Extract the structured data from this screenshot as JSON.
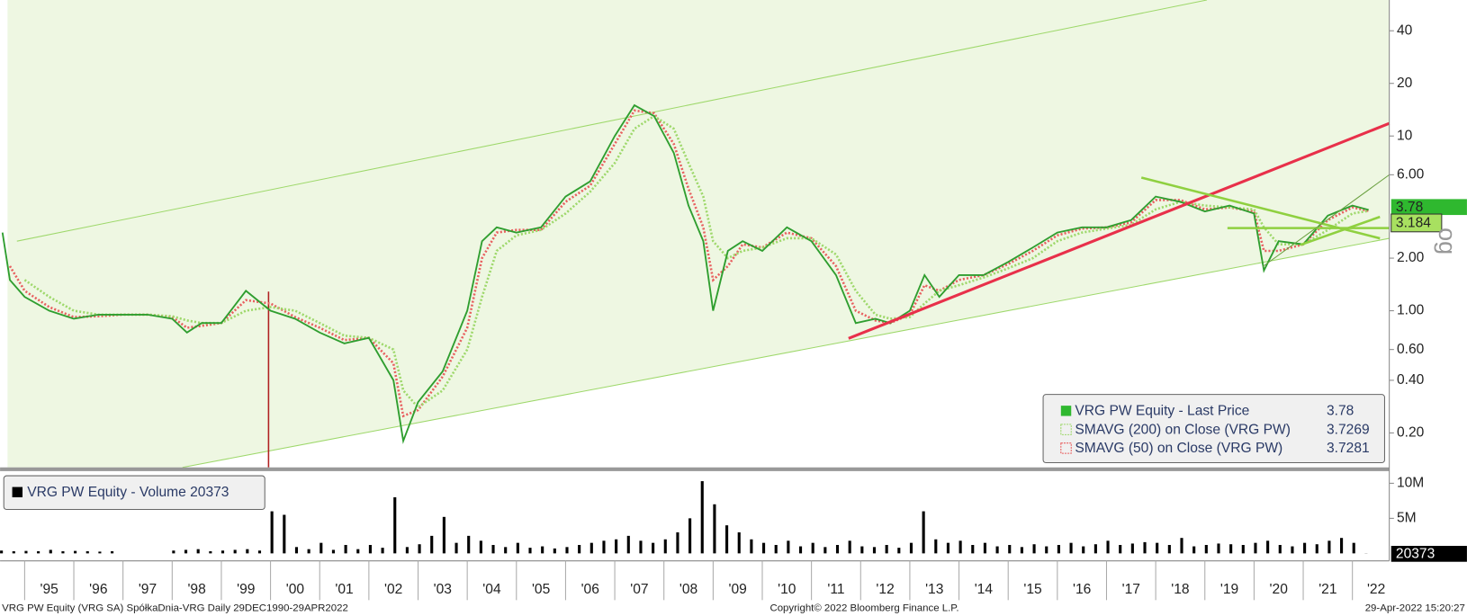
{
  "chart_data": [
    {
      "type": "line",
      "log_scale": true,
      "x": [
        1994.55,
        1994.7,
        1995,
        1995.5,
        1996,
        1996.5,
        1997,
        1997.5,
        1998,
        1998.3,
        1998.6,
        1999,
        1999.5,
        2000,
        2000.5,
        2001,
        2001.5,
        2002,
        2002.5,
        2002.7,
        2003,
        2003.5,
        2004,
        2004.3,
        2004.6,
        2005,
        2005.5,
        2006,
        2006.5,
        2007,
        2007.4,
        2007.8,
        2008.2,
        2008.5,
        2008.8,
        2009,
        2009.3,
        2009.6,
        2010,
        2010.5,
        2011,
        2011.5,
        2011.9,
        2012.3,
        2012.6,
        2013,
        2013.3,
        2013.6,
        2014,
        2014.5,
        2015,
        2015.5,
        2016,
        2016.5,
        2017,
        2017.5,
        2018,
        2018.5,
        2019,
        2019.5,
        2020,
        2020.2,
        2020.5,
        2021,
        2021.5,
        2022,
        2022.33
      ],
      "series": [
        {
          "name": "VRG PW Equity - Last Price",
          "color": "#2f9e2f",
          "dash": false,
          "values": [
            2.8,
            1.5,
            1.2,
            1.0,
            0.9,
            0.95,
            0.95,
            0.95,
            0.9,
            0.75,
            0.85,
            0.85,
            1.3,
            1.0,
            0.9,
            0.75,
            0.65,
            0.7,
            0.4,
            0.18,
            0.3,
            0.45,
            1.0,
            2.5,
            3.0,
            2.8,
            3.0,
            4.5,
            5.5,
            10,
            15,
            13,
            8,
            4,
            2.5,
            1.0,
            2.2,
            2.5,
            2.2,
            3.0,
            2.5,
            1.6,
            0.85,
            0.9,
            0.85,
            1.0,
            1.6,
            1.2,
            1.6,
            1.6,
            1.9,
            2.3,
            2.8,
            3.0,
            3.0,
            3.3,
            4.5,
            4.2,
            3.7,
            4.0,
            3.6,
            1.7,
            2.5,
            2.4,
            3.5,
            4.0,
            3.78
          ]
        },
        {
          "name": "SMAVG (200)  on Close (VRG PW)",
          "color": "#9ed86b",
          "dash": true,
          "values": [
            null,
            null,
            1.5,
            1.2,
            1.0,
            0.95,
            0.95,
            0.95,
            0.93,
            0.88,
            0.85,
            0.85,
            1.0,
            1.05,
            1.0,
            0.85,
            0.72,
            0.7,
            0.6,
            0.35,
            0.28,
            0.35,
            0.6,
            1.2,
            2.2,
            2.7,
            2.9,
            3.6,
            4.8,
            7,
            11,
            13,
            11,
            7,
            4.5,
            2.5,
            2.0,
            2.2,
            2.3,
            2.6,
            2.6,
            2.1,
            1.3,
            0.95,
            0.9,
            0.92,
            1.1,
            1.3,
            1.4,
            1.55,
            1.75,
            2.0,
            2.5,
            2.8,
            2.95,
            3.1,
            3.8,
            4.2,
            4.0,
            3.9,
            3.8,
            3.0,
            2.4,
            2.4,
            2.9,
            3.6,
            3.7269
          ]
        },
        {
          "name": "SMAVG (50)  on Close (VRG PW)",
          "color": "#e86060",
          "dash": true,
          "values": [
            null,
            1.8,
            1.3,
            1.05,
            0.92,
            0.93,
            0.95,
            0.95,
            0.92,
            0.8,
            0.82,
            0.85,
            1.15,
            1.1,
            0.92,
            0.8,
            0.68,
            0.7,
            0.5,
            0.25,
            0.27,
            0.42,
            0.8,
            2.0,
            2.8,
            2.9,
            2.9,
            4.2,
            5.2,
            9,
            14,
            13.5,
            9,
            5,
            3,
            1.5,
            1.8,
            2.4,
            2.3,
            2.8,
            2.6,
            1.8,
            1.0,
            0.88,
            0.85,
            0.95,
            1.4,
            1.3,
            1.5,
            1.6,
            1.85,
            2.2,
            2.7,
            2.95,
            3.0,
            3.2,
            4.3,
            4.3,
            3.8,
            3.9,
            3.7,
            2.2,
            2.2,
            2.4,
            3.3,
            3.9,
            3.7281
          ]
        }
      ],
      "xlim": [
        1994.5,
        2022.75
      ],
      "ylim": [
        0.127,
        60
      ],
      "yticks": [
        {
          "value": 0.2,
          "label": "0.20"
        },
        {
          "value": 0.4,
          "label": "0.40"
        },
        {
          "value": 0.6,
          "label": "0.60"
        },
        {
          "value": 1,
          "label": "1.00"
        },
        {
          "value": 2,
          "label": "2.00"
        },
        {
          "value": 6,
          "label": "6.00"
        },
        10,
        20,
        40
      ],
      "annotations": [
        "3.184",
        "og"
      ],
      "legend": "lower right"
    },
    {
      "type": "bar",
      "name": "VRG PW Equity - Volume",
      "color": "#000000",
      "x": [
        1994.5,
        1994.75,
        1995,
        1995.25,
        1995.5,
        1995.75,
        1996,
        1996.25,
        1996.5,
        1996.75,
        1997,
        1997.25,
        1997.5,
        1997.75,
        1998,
        1998.25,
        1998.5,
        1998.75,
        1999,
        1999.25,
        1999.5,
        1999.75,
        2000,
        2000.25,
        2000.5,
        2000.75,
        2001,
        2001.25,
        2001.5,
        2001.75,
        2002,
        2002.25,
        2002.5,
        2002.75,
        2003,
        2003.25,
        2003.5,
        2003.75,
        2004,
        2004.25,
        2004.5,
        2004.75,
        2005,
        2005.25,
        2005.5,
        2005.75,
        2006,
        2006.25,
        2006.5,
        2006.75,
        2007,
        2007.25,
        2007.5,
        2007.75,
        2008,
        2008.25,
        2008.5,
        2008.75,
        2009,
        2009.25,
        2009.5,
        2009.75,
        2010,
        2010.25,
        2010.5,
        2010.75,
        2011,
        2011.25,
        2011.5,
        2011.75,
        2012,
        2012.25,
        2012.5,
        2012.75,
        2013,
        2013.25,
        2013.5,
        2013.75,
        2014,
        2014.25,
        2014.5,
        2014.75,
        2015,
        2015.25,
        2015.5,
        2015.75,
        2016,
        2016.25,
        2016.5,
        2016.75,
        2017,
        2017.25,
        2017.5,
        2017.75,
        2018,
        2018.25,
        2018.5,
        2018.75,
        2019,
        2019.25,
        2019.5,
        2019.75,
        2020,
        2020.25,
        2020.5,
        2020.75,
        2021,
        2021.25,
        2021.5,
        2021.75,
        2022,
        2022.25
      ],
      "values": [
        400000,
        300000,
        350000,
        300000,
        500000,
        300000,
        350000,
        300000,
        250000,
        300000,
        null,
        null,
        null,
        null,
        400000,
        500000,
        600000,
        300000,
        400000,
        500000,
        600000,
        400000,
        6000000,
        5500000,
        900000,
        600000,
        1500000,
        500000,
        1200000,
        600000,
        1200000,
        800000,
        8000000,
        900000,
        1300000,
        2500000,
        5200000,
        1500000,
        2500000,
        1800000,
        1200000,
        900000,
        1500000,
        800000,
        1000000,
        700000,
        900000,
        1200000,
        1500000,
        1800000,
        2000000,
        2500000,
        1800000,
        1500000,
        2000000,
        3000000,
        5000000,
        10300000,
        7000000,
        4000000,
        3000000,
        2000000,
        1500000,
        1200000,
        1800000,
        1000000,
        1500000,
        900000,
        1200000,
        1800000,
        1000000,
        900000,
        1200000,
        800000,
        1500000,
        6000000,
        2000000,
        1500000,
        1800000,
        1200000,
        1500000,
        1000000,
        1200000,
        900000,
        1300000,
        1000000,
        1200000,
        1500000,
        1000000,
        1300000,
        1800000,
        1200000,
        1400000,
        1600000,
        1500000,
        1200000,
        2200000,
        1000000,
        1200000,
        1400000,
        1300000,
        1200000,
        1500000,
        1800000,
        1200000,
        1000000,
        1500000,
        1300000,
        1800000,
        2200000,
        1500000,
        20373
      ],
      "xlim": [
        1994.5,
        2022.75
      ],
      "ylim": [
        0,
        11600000
      ],
      "yticks": [
        {
          "value": 5000000,
          "label": "5M"
        },
        {
          "value": 10000000,
          "label": "10M"
        }
      ],
      "xticks": [
        {
          "value": 1995,
          "label": "'95"
        },
        {
          "value": 1996,
          "label": "'96"
        },
        {
          "value": 1997,
          "label": "'97"
        },
        {
          "value": 1998,
          "label": "'98"
        },
        {
          "value": 1999,
          "label": "'99"
        },
        {
          "value": 2000,
          "label": "'00"
        },
        {
          "value": 2001,
          "label": "'01"
        },
        {
          "value": 2002,
          "label": "'02"
        },
        {
          "value": 2003,
          "label": "'03"
        },
        {
          "value": 2004,
          "label": "'04"
        },
        {
          "value": 2005,
          "label": "'05"
        },
        {
          "value": 2006,
          "label": "'06"
        },
        {
          "value": 2007,
          "label": "'07"
        },
        {
          "value": 2008,
          "label": "'08"
        },
        {
          "value": 2009,
          "label": "'09"
        },
        {
          "value": 2010,
          "label": "'10"
        },
        {
          "value": 2011,
          "label": "'11"
        },
        {
          "value": 2012,
          "label": "'12"
        },
        {
          "value": 2013,
          "label": "'13"
        },
        {
          "value": 2014,
          "label": "'14"
        },
        {
          "value": 2015,
          "label": "'15"
        },
        {
          "value": 2016,
          "label": "'16"
        },
        {
          "value": 2017,
          "label": "'17"
        },
        {
          "value": 2018,
          "label": "'18"
        },
        {
          "value": 2019,
          "label": "'19"
        },
        {
          "value": 2020,
          "label": "'20"
        },
        {
          "value": 2021,
          "label": "'21"
        },
        {
          "value": 2022,
          "label": "'22"
        }
      ]
    }
  ],
  "footer": {
    "left": "VRG PW Equity (VRG SA) SpółkaDnia-VRG  Daily 29DEC1990-29APR2022",
    "center": "Copyright© 2022 Bloomberg Finance L.P.",
    "right": "29-Apr-2022 15:20:27"
  }
}
